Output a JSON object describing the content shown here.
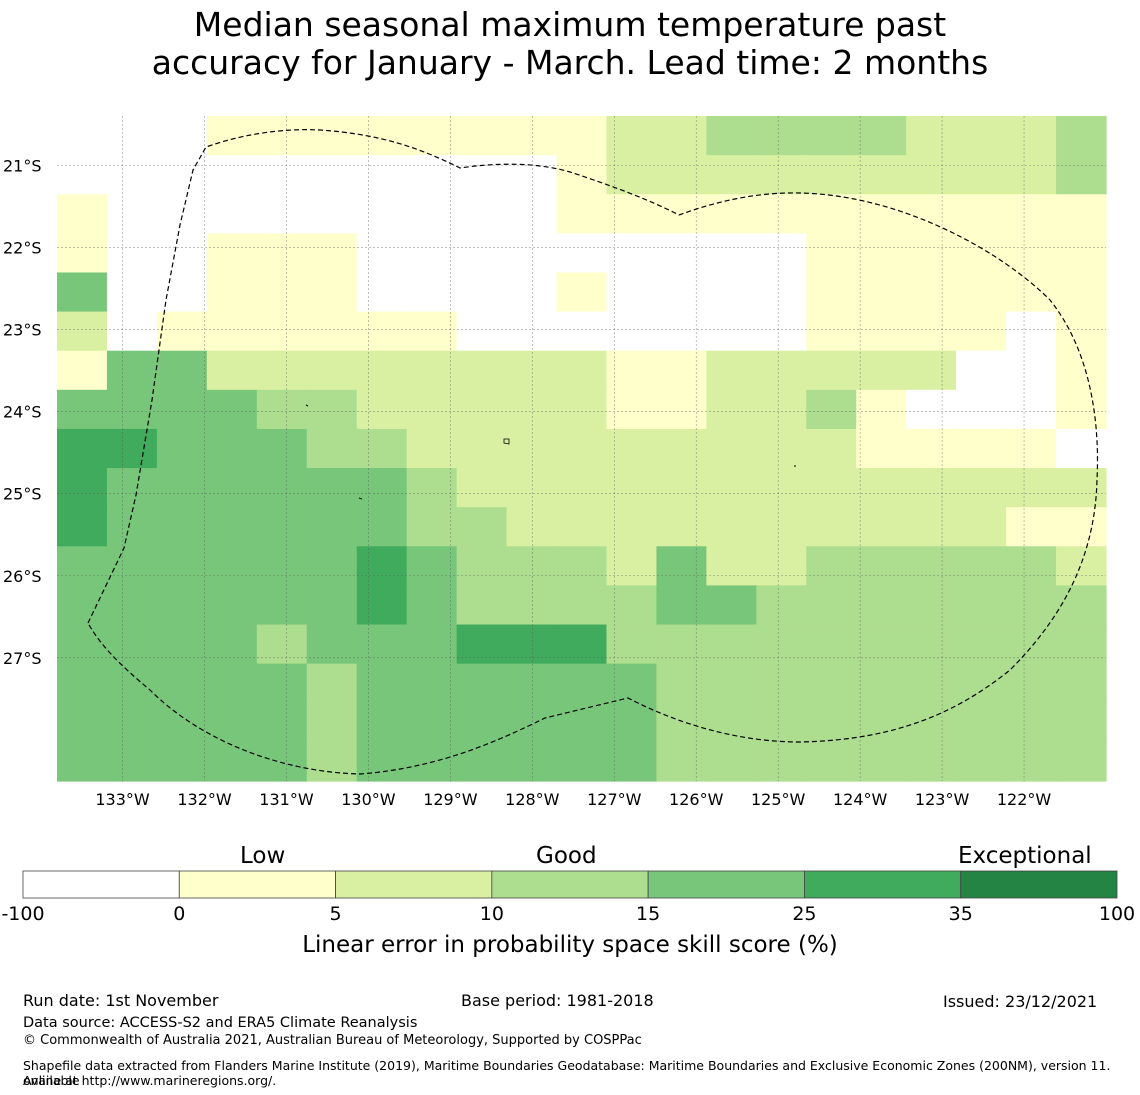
{
  "title": {
    "line1": "Median seasonal maximum temperature past",
    "line2": "accuracy for January - March. Lead time: 2 months"
  },
  "colors": {
    "c0": "#ffffff",
    "c1": "#ffffcc",
    "c2": "#d9f0a3",
    "c3": "#addd8e",
    "c4": "#78c679",
    "c5": "#41ab5d",
    "c6": "#238443"
  },
  "chart_data": {
    "type": "heatmap",
    "x_range_deg_w": [
      133.8,
      121.0
    ],
    "y_range_deg_s": [
      20.4,
      28.5
    ],
    "x_ticks": [
      "133°W",
      "132°W",
      "131°W",
      "130°W",
      "129°W",
      "128°W",
      "127°W",
      "126°W",
      "125°W",
      "124°W",
      "123°W",
      "122°W"
    ],
    "y_ticks": [
      "21°S",
      "22°S",
      "23°S",
      "24°S",
      "25°S",
      "26°S",
      "27°S"
    ],
    "grid_rows": [
      "000111111112233332223",
      "000000000012222222223",
      "100000000011111111111",
      "100111000000000111111",
      "400111000010000111111",
      "201111110000000111101",
      "144222222221122222001",
      "444433222221122310001",
      "554443322222222211110",
      "544444432222222222222",
      "544444433222222222211",
      "444444543332422333332",
      "444444543333443333333",
      "444434445553333333333",
      "444443444444333333333",
      "444443444444333333333",
      "444443444444333333333"
    ],
    "colorbar": {
      "boundaries": [
        "-100",
        "0",
        "5",
        "10",
        "15",
        "25",
        "35",
        "100"
      ],
      "categories": [
        "Low",
        "Good",
        "Exceptional"
      ],
      "label": "Linear error in probability space skill score (%)"
    }
  },
  "footer": {
    "run_date": "Run date: 1st November",
    "base_period": "Base period: 1981-2018",
    "issued": "Issued: 23/12/2021",
    "data_source": "Data source: ACCESS-S2 and ERA5 Climate Reanalysis",
    "copyright": "© Commonwealth of Australia 2021, Australian Bureau of Meteorology, Supported by COSPPac",
    "shapefile_line1": "Shapefile data extracted from Flanders Marine Institute (2019), Maritime Boundaries Geodatabase: Maritime Boundaries and Exclusive Economic Zones (200NM), version 11. Available",
    "shapefile_line2": "online at http://www.marineregions.org/."
  }
}
